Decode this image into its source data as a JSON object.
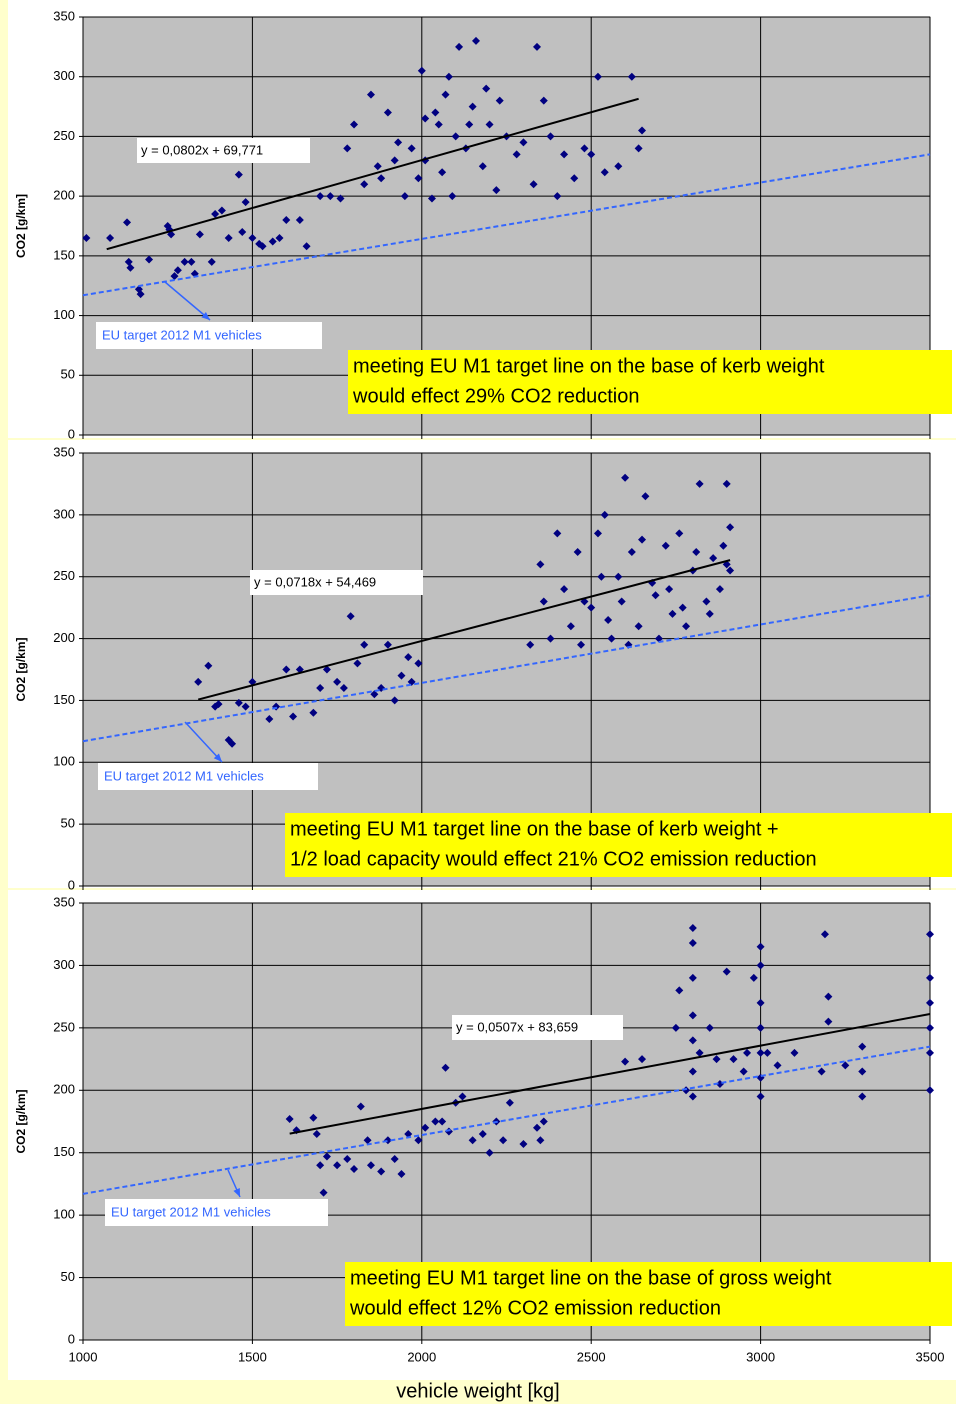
{
  "chart_data": [
    {
      "type": "scatter",
      "y_label": "CO2 [g/km]",
      "xlim": [
        1000,
        3500
      ],
      "ylim": [
        0,
        350
      ],
      "xticks": [
        1000,
        1500,
        2000,
        2500,
        3000,
        3500
      ],
      "yticks": [
        0,
        50,
        100,
        150,
        200,
        250,
        300,
        350
      ],
      "show_xtick_labels": false,
      "grid": true,
      "series": [
        {
          "color": "#000080",
          "x": [
            1010,
            1080,
            1130,
            1135,
            1140,
            1170,
            1165,
            1195,
            1250,
            1255,
            1260,
            1270,
            1280,
            1300,
            1320,
            1330,
            1345,
            1380,
            1390,
            1410,
            1430,
            1460,
            1470,
            1480,
            1500,
            1520,
            1530,
            1560,
            1580,
            1600,
            1640,
            1660,
            1700,
            1730,
            1760,
            1780,
            1800,
            1830,
            1850,
            1870,
            1880,
            1900,
            1920,
            1930,
            1950,
            1970,
            1990,
            2000,
            2010,
            2010,
            2030,
            2040,
            2050,
            2060,
            2070,
            2080,
            2090,
            2100,
            2110,
            2130,
            2140,
            2150,
            2160,
            2180,
            2190,
            2200,
            2220,
            2230,
            2250,
            2280,
            2300,
            2330,
            2340,
            2360,
            2380,
            2400,
            2420,
            2450,
            2480,
            2500,
            2520,
            2540,
            2580,
            2620,
            2640,
            2650
          ],
          "values": [
            165,
            165,
            178,
            145,
            140,
            118,
            122,
            147,
            175,
            172,
            168,
            133,
            138,
            145,
            145,
            135,
            168,
            145,
            185,
            188,
            165,
            218,
            170,
            195,
            165,
            160,
            158,
            162,
            165,
            180,
            180,
            158,
            200,
            200,
            198,
            240,
            260,
            210,
            285,
            225,
            215,
            270,
            230,
            245,
            200,
            240,
            215,
            305,
            230,
            265,
            198,
            270,
            260,
            220,
            285,
            300,
            200,
            250,
            325,
            240,
            260,
            275,
            330,
            225,
            290,
            260,
            205,
            280,
            250,
            235,
            245,
            210,
            325,
            280,
            250,
            200,
            235,
            215,
            240,
            235,
            300,
            220,
            225,
            300,
            240,
            255
          ]
        },
        {
          "color": "#000000",
          "x": [
            1070,
            2640
          ],
          "values": [
            155.6,
            281.5
          ]
        },
        {
          "color": "#3366ff",
          "x": [
            1000,
            3500
          ],
          "values": [
            117,
            235
          ]
        }
      ],
      "equation": "y = 0,0802x + 69,771",
      "target_label": "EU target 2012 M1 vehicles",
      "note": [
        "meeting EU M1 target line on the base of kerb weight",
        "would effect 29% CO2 reduction"
      ]
    },
    {
      "type": "scatter",
      "y_label": "CO2 [g/km]",
      "xlim": [
        1000,
        3500
      ],
      "ylim": [
        0,
        350
      ],
      "xticks": [
        1000,
        1500,
        2000,
        2500,
        3000,
        3500
      ],
      "yticks": [
        0,
        50,
        100,
        150,
        200,
        250,
        300,
        350
      ],
      "show_xtick_labels": false,
      "grid": true,
      "series": [
        {
          "color": "#000080",
          "x": [
            1340,
            1370,
            1390,
            1400,
            1430,
            1440,
            1460,
            1480,
            1500,
            1550,
            1570,
            1600,
            1620,
            1640,
            1680,
            1700,
            1720,
            1750,
            1770,
            1790,
            1810,
            1830,
            1860,
            1880,
            1900,
            1920,
            1940,
            1960,
            1970,
            1990,
            2320,
            2350,
            2360,
            2380,
            2400,
            2420,
            2440,
            2460,
            2470,
            2480,
            2500,
            2520,
            2530,
            2540,
            2550,
            2560,
            2580,
            2590,
            2600,
            2610,
            2620,
            2640,
            2650,
            2660,
            2680,
            2690,
            2700,
            2720,
            2730,
            2740,
            2760,
            2770,
            2780,
            2800,
            2810,
            2820,
            2840,
            2850,
            2860,
            2880,
            2890,
            2900,
            2900,
            2910,
            2910
          ],
          "values": [
            165,
            178,
            145,
            147,
            118,
            115,
            148,
            145,
            165,
            135,
            145,
            175,
            137,
            175,
            140,
            160,
            175,
            165,
            160,
            218,
            180,
            195,
            155,
            160,
            195,
            150,
            170,
            185,
            165,
            180,
            195,
            260,
            230,
            200,
            285,
            240,
            210,
            270,
            195,
            230,
            225,
            285,
            250,
            300,
            215,
            200,
            250,
            230,
            330,
            195,
            270,
            210,
            280,
            315,
            245,
            235,
            200,
            275,
            240,
            220,
            285,
            225,
            210,
            255,
            270,
            325,
            230,
            220,
            265,
            240,
            275,
            325,
            260,
            290,
            255
          ]
        },
        {
          "color": "#000000",
          "x": [
            1340,
            2910
          ],
          "values": [
            150.7,
            263.4
          ]
        },
        {
          "color": "#3366ff",
          "x": [
            1000,
            3500
          ],
          "values": [
            117,
            235
          ]
        }
      ],
      "equation": "y = 0,0718x + 54,469",
      "target_label": "EU target 2012 M1 vehicles",
      "note": [
        "meeting EU M1 target line on the base of kerb weight +",
        "1/2 load capacity would effect 21% CO2 emission reduction"
      ]
    },
    {
      "type": "scatter",
      "y_label": "CO2 [g/km]",
      "x_label": "vehicle weight [kg]",
      "xlim": [
        1000,
        3500
      ],
      "ylim": [
        0,
        350
      ],
      "xticks": [
        1000,
        1500,
        2000,
        2500,
        3000,
        3500
      ],
      "yticks": [
        0,
        50,
        100,
        150,
        200,
        250,
        300,
        350
      ],
      "show_xtick_labels": true,
      "grid": true,
      "series": [
        {
          "color": "#000080",
          "x": [
            1610,
            1630,
            1680,
            1690,
            1700,
            1710,
            1720,
            1750,
            1780,
            1800,
            1820,
            1840,
            1850,
            1880,
            1900,
            1920,
            1940,
            1960,
            1990,
            2010,
            2040,
            2060,
            2070,
            2080,
            2100,
            2120,
            2150,
            2180,
            2200,
            2220,
            2240,
            2260,
            2300,
            2340,
            2350,
            2360,
            2600,
            2650,
            2750,
            2760,
            2780,
            2800,
            2800,
            2800,
            2800,
            2800,
            2800,
            2800,
            2820,
            2850,
            2870,
            2880,
            2900,
            2920,
            2950,
            2960,
            2980,
            3000,
            3000,
            3000,
            3000,
            3000,
            3000,
            3000,
            3020,
            3050,
            3100,
            3180,
            3190,
            3200,
            3200,
            3250,
            3300,
            3300,
            3300,
            3500,
            3500,
            3500,
            3500,
            3500,
            3500
          ],
          "values": [
            177,
            168,
            178,
            165,
            140,
            118,
            147,
            140,
            145,
            137,
            187,
            160,
            140,
            135,
            160,
            145,
            133,
            165,
            160,
            170,
            175,
            175,
            218,
            167,
            190,
            195,
            160,
            165,
            150,
            175,
            160,
            190,
            157,
            170,
            160,
            175,
            223,
            225,
            250,
            280,
            200,
            330,
            318,
            290,
            260,
            240,
            215,
            195,
            230,
            250,
            225,
            205,
            295,
            225,
            215,
            230,
            290,
            315,
            300,
            270,
            250,
            230,
            210,
            195,
            230,
            220,
            230,
            215,
            325,
            275,
            255,
            220,
            235,
            215,
            195,
            325,
            290,
            270,
            250,
            230,
            200
          ]
        },
        {
          "color": "#000000",
          "x": [
            1610,
            3500
          ],
          "values": [
            165.3,
            261.1
          ]
        },
        {
          "color": "#3366ff",
          "x": [
            1000,
            3500
          ],
          "values": [
            117,
            235
          ]
        }
      ],
      "equation": "y = 0,0507x + 83,659",
      "target_label": "EU target 2012 M1 vehicles",
      "note": [
        "meeting EU M1 target line on the base of gross weight",
        "would effect 12% CO2 emission reduction"
      ]
    }
  ]
}
